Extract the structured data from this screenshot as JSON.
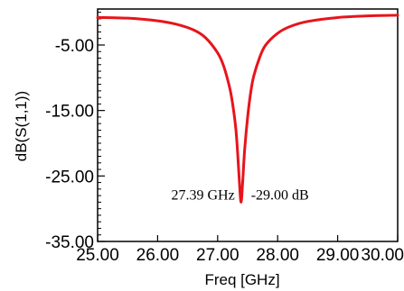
{
  "chart_data": {
    "type": "line",
    "xlabel": "Freq [GHz]",
    "ylabel": "dB(S(1,1))",
    "xlim": [
      25.0,
      30.0
    ],
    "ylim": [
      -35.0,
      0.5
    ],
    "grid": false,
    "x_ticks": [
      "25.00",
      "26.00",
      "27.00",
      "28.00",
      "29.00",
      "30.00"
    ],
    "y_ticks": [
      "-5.00",
      "-15.00",
      "-25.00",
      "-35.00"
    ],
    "series": [
      {
        "color": "#e8141b",
        "x": [
          25.0,
          25.5,
          26.0,
          26.3,
          26.6,
          26.8,
          27.0,
          27.1,
          27.2,
          27.25,
          27.3,
          27.33,
          27.36,
          27.39,
          27.42,
          27.45,
          27.5,
          27.55,
          27.6,
          27.7,
          27.8,
          28.0,
          28.2,
          28.5,
          29.0,
          29.5,
          30.0
        ],
        "y": [
          -0.8,
          -0.9,
          -1.3,
          -1.8,
          -2.7,
          -3.9,
          -6.2,
          -8.2,
          -11.5,
          -14.0,
          -17.5,
          -21.0,
          -25.5,
          -29.0,
          -25.5,
          -21.0,
          -16.0,
          -12.3,
          -9.8,
          -6.9,
          -5.0,
          -3.2,
          -2.2,
          -1.4,
          -0.8,
          -0.55,
          -0.45
        ]
      }
    ],
    "annotations": [
      {
        "text": "27.39 GHz",
        "x": 27.39,
        "y": -29.0
      },
      {
        "text": "-29.00 dB",
        "x": 27.39,
        "y": -29.0
      }
    ]
  }
}
